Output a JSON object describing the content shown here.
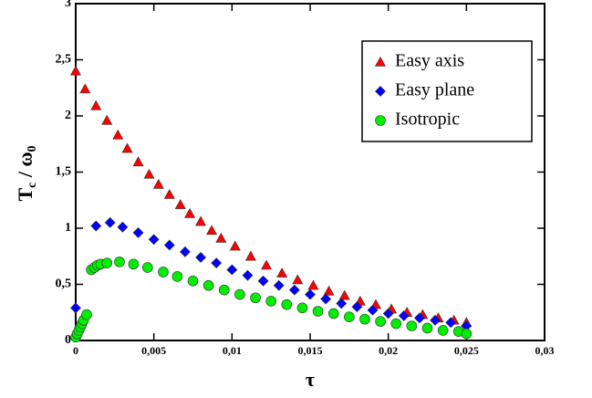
{
  "chart_data": {
    "type": "scatter",
    "xlabel": "τ",
    "ylabel": [
      "T",
      "c",
      " / ω",
      "0"
    ],
    "xlim": [
      0,
      0.03
    ],
    "ylim": [
      0,
      3
    ],
    "xticks": [
      0,
      {
        "value": 0.005,
        "label": "0,005"
      },
      {
        "value": 0.01,
        "label": "0,01"
      },
      {
        "value": 0.015,
        "label": "0,015"
      },
      {
        "value": 0.02,
        "label": "0,02"
      },
      {
        "value": 0.025,
        "label": "0,025"
      },
      {
        "value": 0.03,
        "label": "0,03"
      }
    ],
    "yticks": [
      0,
      {
        "value": 0.5,
        "label": "0,5"
      },
      1,
      {
        "value": 1.5,
        "label": "1,5"
      },
      2,
      {
        "value": 2.5,
        "label": "2,5"
      },
      3
    ],
    "legend": "upper right",
    "series": [
      {
        "name": "Easy axis",
        "color": "#ff0000",
        "marker": "triangle",
        "x": [
          0,
          0.0006,
          0.0013,
          0.002,
          0.0027,
          0.0033,
          0.004,
          0.0047,
          0.0053,
          0.006,
          0.0067,
          0.0073,
          0.008,
          0.0087,
          0.0093,
          0.0102,
          0.0112,
          0.0122,
          0.0132,
          0.0142,
          0.0152,
          0.0162,
          0.0172,
          0.0182,
          0.0192,
          0.0202,
          0.0212,
          0.0222,
          0.0232,
          0.0242,
          0.025
        ],
        "values": [
          2.4,
          2.24,
          2.09,
          1.96,
          1.83,
          1.71,
          1.59,
          1.48,
          1.39,
          1.3,
          1.21,
          1.13,
          1.06,
          0.98,
          0.91,
          0.84,
          0.75,
          0.67,
          0.6,
          0.54,
          0.49,
          0.44,
          0.4,
          0.35,
          0.32,
          0.28,
          0.25,
          0.23,
          0.2,
          0.18,
          0.16
        ]
      },
      {
        "name": "Easy plane",
        "color": "#0000ff",
        "marker": "diamond",
        "x": [
          0,
          0.0013,
          0.0022,
          0.003,
          0.004,
          0.005,
          0.006,
          0.007,
          0.008,
          0.009,
          0.01,
          0.011,
          0.012,
          0.013,
          0.014,
          0.015,
          0.016,
          0.017,
          0.018,
          0.019,
          0.02,
          0.021,
          0.022,
          0.023,
          0.024,
          0.025
        ],
        "values": [
          0.29,
          1.02,
          1.05,
          1.01,
          0.96,
          0.9,
          0.85,
          0.79,
          0.74,
          0.69,
          0.63,
          0.58,
          0.53,
          0.49,
          0.45,
          0.41,
          0.37,
          0.33,
          0.3,
          0.27,
          0.24,
          0.22,
          0.2,
          0.18,
          0.16,
          0.13
        ]
      },
      {
        "name": "Isotropic",
        "color": "#00ee00",
        "marker": "circle",
        "x": [
          0,
          0.0001,
          0.0002,
          0.0003,
          0.0004,
          0.0005,
          0.0007,
          0.001,
          0.0012,
          0.0014,
          0.0016,
          0.002,
          0.0028,
          0.0037,
          0.0046,
          0.0056,
          0.0065,
          0.0075,
          0.0085,
          0.0095,
          0.0105,
          0.0115,
          0.0125,
          0.0135,
          0.0145,
          0.0155,
          0.0165,
          0.0175,
          0.0185,
          0.0195,
          0.0205,
          0.0215,
          0.0225,
          0.0235,
          0.0245,
          0.025
        ],
        "values": [
          0.03,
          0.06,
          0.09,
          0.12,
          0.15,
          0.18,
          0.23,
          0.63,
          0.65,
          0.67,
          0.68,
          0.69,
          0.7,
          0.68,
          0.65,
          0.61,
          0.57,
          0.53,
          0.49,
          0.45,
          0.41,
          0.38,
          0.35,
          0.32,
          0.29,
          0.26,
          0.24,
          0.21,
          0.19,
          0.17,
          0.15,
          0.13,
          0.11,
          0.09,
          0.08,
          0.06
        ]
      }
    ]
  }
}
